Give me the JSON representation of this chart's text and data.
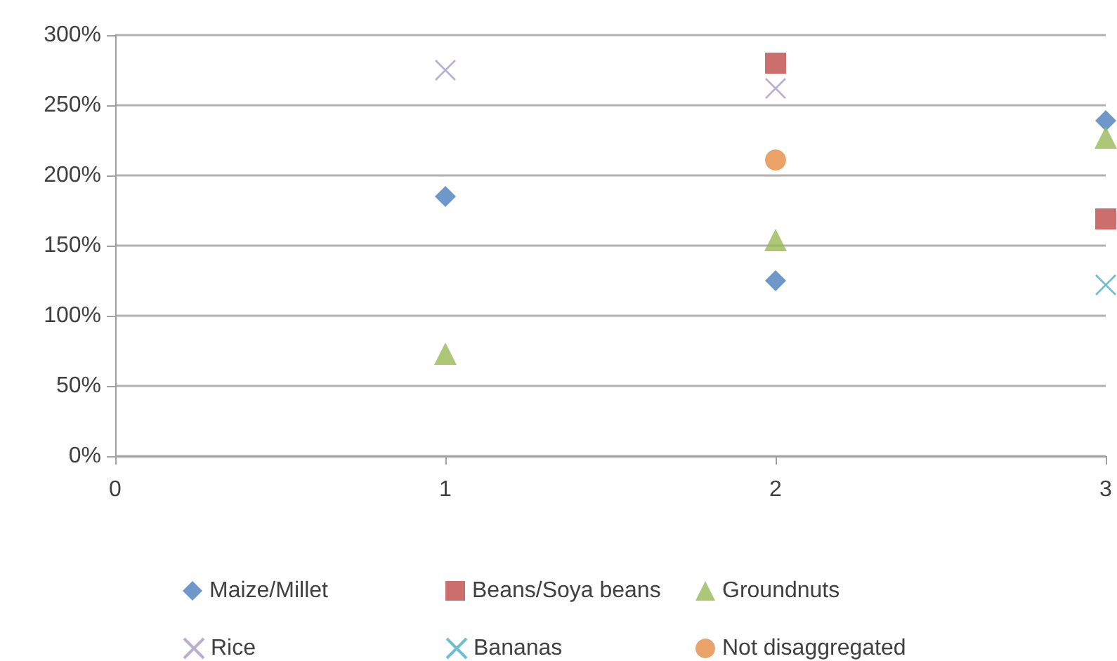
{
  "chart_data": {
    "type": "scatter",
    "x": [
      1,
      2,
      3
    ],
    "series": [
      {
        "name": "Maize/Millet",
        "color": "#4a7ebb",
        "marker": "diamond",
        "values": [
          185,
          125,
          239
        ]
      },
      {
        "name": "Beans/Soya beans",
        "color": "#be4b48",
        "marker": "square",
        "values": [
          null,
          280,
          169
        ]
      },
      {
        "name": "Groundnuts",
        "color": "#98b954",
        "marker": "triangle",
        "values": [
          73,
          154,
          227
        ]
      },
      {
        "name": "Rice",
        "color": "#a99bc8",
        "marker": "cross",
        "values": [
          275,
          262,
          null
        ]
      },
      {
        "name": "Bananas",
        "color": "#4bacc6",
        "marker": "cross",
        "values": [
          null,
          null,
          122
        ]
      },
      {
        "name": "Not disaggregated",
        "color": "#e38c43",
        "marker": "circle",
        "values": [
          null,
          211,
          null
        ]
      }
    ],
    "xlim": [
      0,
      3
    ],
    "xticks": [
      0,
      1,
      2,
      3
    ],
    "ylim": [
      0,
      300
    ],
    "yticks": [
      {
        "value": 0,
        "label": "0%"
      },
      {
        "value": 50,
        "label": "50%"
      },
      {
        "value": 100,
        "label": "100%"
      },
      {
        "value": 150,
        "label": "150%"
      },
      {
        "value": 200,
        "label": "200%"
      },
      {
        "value": 250,
        "label": "250%"
      },
      {
        "value": 300,
        "label": "300%"
      }
    ],
    "grid": "y",
    "legend": "bottom"
  }
}
